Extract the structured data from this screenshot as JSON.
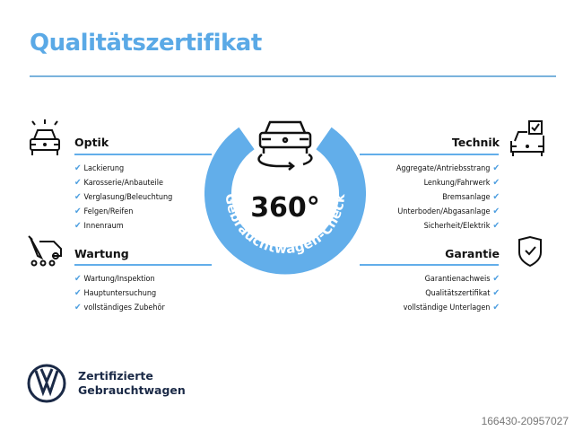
{
  "title": "Qualitätszertifikat",
  "center": {
    "big": "360°",
    "ring_text": "Gebrauchtwagen-Check"
  },
  "sections": {
    "optik": {
      "heading": "Optik",
      "icon": "car-lights-icon",
      "items": [
        "Lackierung",
        "Karosserie/Anbauteile",
        "Verglasung/Beleuchtung",
        "Felgen/Reifen",
        "Innenraum"
      ]
    },
    "wartung": {
      "heading": "Wartung",
      "icon": "service-truck-icon",
      "items": [
        "Wartung/Inspektion",
        "Hauptuntersuchung",
        "vollständiges Zubehör"
      ]
    },
    "technik": {
      "heading": "Technik",
      "icon": "car-checklist-icon",
      "items": [
        "Aggregate/Antriebsstrang",
        "Lenkung/Fahrwerk",
        "Bremsanlage",
        "Unterboden/Abgasanlage",
        "Sicherheit/Elektrik"
      ]
    },
    "garantie": {
      "heading": "Garantie",
      "icon": "shield-check-icon",
      "items": [
        "Garantienachweis",
        "Qualitätszertifikat",
        "vollständige Unterlagen"
      ]
    }
  },
  "check_mark": "✔",
  "brand": {
    "line1": "Zertifizierte",
    "line2": "Gebrauchtwagen"
  },
  "watermark": "166430-20957027",
  "colors": {
    "accent": "#5aa9e6",
    "ring": "#62aeea",
    "brand_navy": "#1b2a47"
  }
}
